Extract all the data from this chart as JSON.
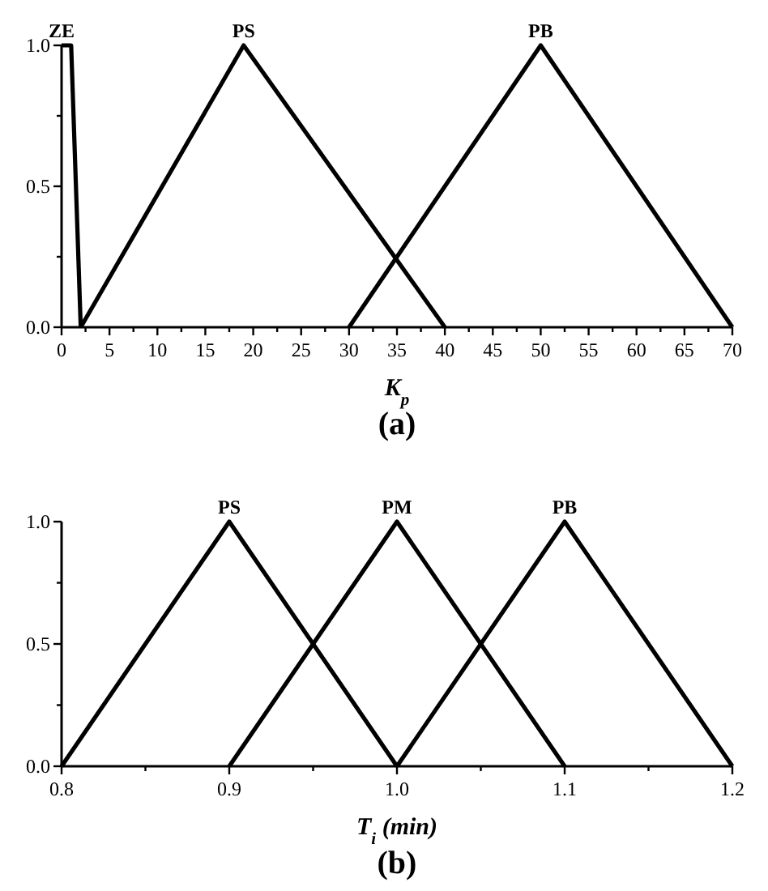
{
  "chart_data": [
    {
      "type": "line",
      "title": "(a)",
      "xlabel": "K$_{p}$",
      "xlim": [
        0,
        70
      ],
      "ylim": [
        0,
        1
      ],
      "xticks": [
        {
          "value": 0,
          "label": "0"
        },
        {
          "value": 2.5,
          "label": null
        },
        {
          "value": 5,
          "label": "5"
        },
        {
          "value": 7.5,
          "label": null
        },
        {
          "value": 10,
          "label": "10"
        },
        {
          "value": 12.5,
          "label": null
        },
        {
          "value": 15,
          "label": "15"
        },
        {
          "value": 17.5,
          "label": null
        },
        {
          "value": 20,
          "label": "20"
        },
        {
          "value": 22.5,
          "label": null
        },
        {
          "value": 25,
          "label": "25"
        },
        {
          "value": 27.5,
          "label": null
        },
        {
          "value": 30,
          "label": "30"
        },
        {
          "value": 32.5,
          "label": null
        },
        {
          "value": 35,
          "label": "35"
        },
        {
          "value": 37.5,
          "label": null
        },
        {
          "value": 40,
          "label": "40"
        },
        {
          "value": 42.5,
          "label": null
        },
        {
          "value": 45,
          "label": "45"
        },
        {
          "value": 47.5,
          "label": null
        },
        {
          "value": 50,
          "label": "50"
        },
        {
          "value": 52.5,
          "label": null
        },
        {
          "value": 55,
          "label": "55"
        },
        {
          "value": 57.5,
          "label": null
        },
        {
          "value": 60,
          "label": "60"
        },
        {
          "value": 62.5,
          "label": null
        },
        {
          "value": 65,
          "label": "65"
        },
        {
          "value": 67.5,
          "label": null
        },
        {
          "value": 70,
          "label": "70"
        }
      ],
      "yticks": [
        {
          "value": 0,
          "label": "0.0"
        },
        {
          "value": 0.25,
          "label": null
        },
        {
          "value": 0.5,
          "label": "0.5"
        },
        {
          "value": 0.75,
          "label": null
        },
        {
          "value": 1,
          "label": "1.0"
        }
      ],
      "grid": false,
      "marker": "none",
      "line_style": "solid",
      "series": [
        {
          "name": "ZE",
          "color": "#000000",
          "x": [
            0,
            1,
            2
          ],
          "values": [
            1,
            1,
            0
          ]
        },
        {
          "name": "PS",
          "color": "#000000",
          "x": [
            2,
            19,
            40
          ],
          "values": [
            0,
            1,
            0
          ]
        },
        {
          "name": "PB",
          "color": "#000000",
          "x": [
            30,
            50,
            70
          ],
          "values": [
            0,
            1,
            0
          ]
        }
      ]
    },
    {
      "type": "line",
      "title": "(b)",
      "xlabel": "T$_{i}$ (min)",
      "xlim": [
        0.8,
        1.2
      ],
      "ylim": [
        0,
        1
      ],
      "xticks": [
        {
          "value": 0.8,
          "label": "0.8"
        },
        {
          "value": 0.85,
          "label": null
        },
        {
          "value": 0.9,
          "label": "0.9"
        },
        {
          "value": 0.95,
          "label": null
        },
        {
          "value": 1,
          "label": "1.0"
        },
        {
          "value": 1.05,
          "label": null
        },
        {
          "value": 1.1,
          "label": "1.1"
        },
        {
          "value": 1.15,
          "label": null
        },
        {
          "value": 1.2,
          "label": "1.2"
        }
      ],
      "yticks": [
        {
          "value": 0,
          "label": "0.0"
        },
        {
          "value": 0.25,
          "label": null
        },
        {
          "value": 0.5,
          "label": "0.5"
        },
        {
          "value": 0.75,
          "label": null
        },
        {
          "value": 1,
          "label": "1.0"
        }
      ],
      "grid": false,
      "marker": "none",
      "line_style": "solid",
      "series": [
        {
          "name": "PS",
          "color": "#000000",
          "x": [
            0.8,
            0.9,
            1.0
          ],
          "values": [
            0,
            1,
            0
          ]
        },
        {
          "name": "PM",
          "color": "#000000",
          "x": [
            0.9,
            1.0,
            1.1
          ],
          "values": [
            0,
            1,
            0
          ]
        },
        {
          "name": "PB",
          "color": "#000000",
          "x": [
            1.0,
            1.1,
            1.2
          ],
          "values": [
            0,
            1,
            0
          ]
        }
      ]
    }
  ]
}
